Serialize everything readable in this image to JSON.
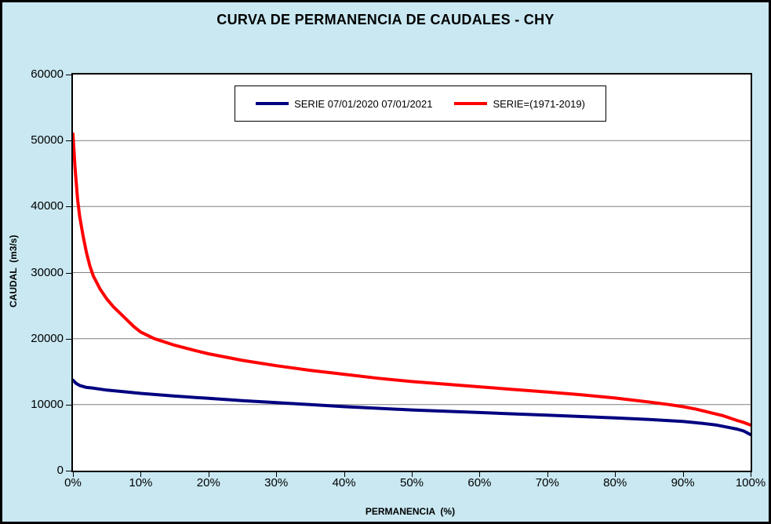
{
  "page": {
    "background": "#C9E8F2",
    "border_color": "#000000"
  },
  "chart_data": {
    "type": "line",
    "title": "CURVA DE PERMANENCIA DE CAUDALES - CHY",
    "xlabel": "PERMANENCIA  (%)",
    "ylabel": "CAUDAL  (m3/s)",
    "xlim": [
      0,
      100
    ],
    "ylim": [
      0,
      60000
    ],
    "x_ticks": [
      "0%",
      "10%",
      "20%",
      "30%",
      "40%",
      "50%",
      "60%",
      "70%",
      "80%",
      "90%",
      "100%"
    ],
    "y_ticks": [
      0,
      10000,
      20000,
      30000,
      40000,
      50000,
      60000
    ],
    "grid": "horizontal-only",
    "legend_position": "top-center-inside",
    "series": [
      {
        "name": "SERIE 07/01/2020 07/01/2021",
        "color": "#000080",
        "points": [
          [
            0,
            13700
          ],
          [
            0.5,
            13200
          ],
          [
            1,
            12900
          ],
          [
            2,
            12600
          ],
          [
            3,
            12500
          ],
          [
            5,
            12200
          ],
          [
            8,
            11900
          ],
          [
            10,
            11700
          ],
          [
            15,
            11300
          ],
          [
            20,
            10950
          ],
          [
            25,
            10600
          ],
          [
            30,
            10300
          ],
          [
            35,
            10000
          ],
          [
            40,
            9700
          ],
          [
            45,
            9450
          ],
          [
            50,
            9200
          ],
          [
            55,
            9000
          ],
          [
            60,
            8800
          ],
          [
            65,
            8600
          ],
          [
            70,
            8400
          ],
          [
            75,
            8200
          ],
          [
            80,
            8000
          ],
          [
            85,
            7750
          ],
          [
            90,
            7450
          ],
          [
            93,
            7150
          ],
          [
            95,
            6900
          ],
          [
            97,
            6500
          ],
          [
            98,
            6300
          ],
          [
            99,
            6000
          ],
          [
            100,
            5450
          ]
        ]
      },
      {
        "name": "SERIE=(1971-2019)",
        "color": "#FF0000",
        "points": [
          [
            0,
            51000
          ],
          [
            0.3,
            46000
          ],
          [
            0.7,
            41000
          ],
          [
            1,
            38500
          ],
          [
            1.5,
            35500
          ],
          [
            2,
            33000
          ],
          [
            2.5,
            31000
          ],
          [
            3,
            29500
          ],
          [
            4,
            27500
          ],
          [
            5,
            26000
          ],
          [
            6,
            24800
          ],
          [
            7,
            23800
          ],
          [
            8,
            22800
          ],
          [
            9,
            21800
          ],
          [
            10,
            21000
          ],
          [
            12,
            20000
          ],
          [
            15,
            19000
          ],
          [
            18,
            18200
          ],
          [
            20,
            17700
          ],
          [
            25,
            16700
          ],
          [
            30,
            15900
          ],
          [
            35,
            15200
          ],
          [
            40,
            14600
          ],
          [
            45,
            14000
          ],
          [
            50,
            13500
          ],
          [
            55,
            13100
          ],
          [
            60,
            12700
          ],
          [
            65,
            12300
          ],
          [
            70,
            11900
          ],
          [
            75,
            11500
          ],
          [
            80,
            11000
          ],
          [
            85,
            10400
          ],
          [
            88,
            10000
          ],
          [
            90,
            9700
          ],
          [
            92,
            9300
          ],
          [
            94,
            8800
          ],
          [
            96,
            8300
          ],
          [
            98,
            7600
          ],
          [
            99,
            7300
          ],
          [
            100,
            6900
          ]
        ]
      }
    ]
  }
}
